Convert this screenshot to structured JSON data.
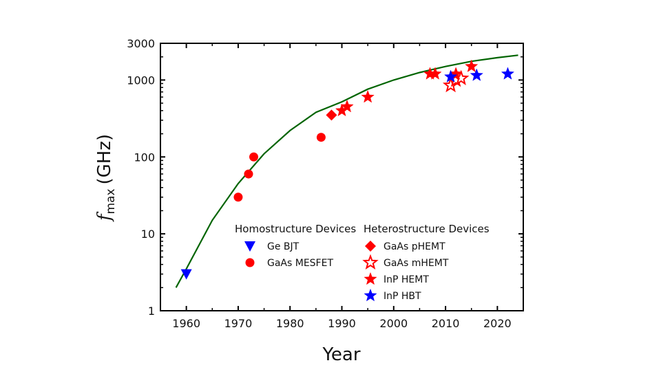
{
  "chart_data": {
    "type": "scatter",
    "xlabel": "Year",
    "ylabel_main": "f",
    "ylabel_sub": "max",
    "ylabel_unit": "(GHz)",
    "xlim": [
      1955,
      2025
    ],
    "ylim": [
      1,
      3000
    ],
    "yscale": "log",
    "grid": false,
    "x_ticks": [
      1960,
      1970,
      1980,
      1990,
      2000,
      2010,
      2020
    ],
    "y_ticks": [
      1,
      10,
      100,
      1000,
      3000
    ],
    "y_tick_labels": [
      "1",
      "10",
      "100",
      "1000",
      "3000"
    ],
    "legend_groups": [
      {
        "title": "Homostructure Devices",
        "entries": [
          "Ge BJT",
          "GaAs MESFET"
        ]
      },
      {
        "title": "Heterostructure Devices",
        "entries": [
          "GaAs pHEMT",
          "GaAs mHEMT",
          "InP HEMT",
          "InP HBT"
        ]
      }
    ],
    "series": [
      {
        "name": "Ge BJT",
        "marker": "triangle-down",
        "color": "#0000ff",
        "filled": true,
        "points": [
          [
            1960,
            3
          ]
        ]
      },
      {
        "name": "GaAs MESFET",
        "marker": "circle",
        "color": "#ff0000",
        "filled": true,
        "points": [
          [
            1970,
            30
          ],
          [
            1972,
            60
          ],
          [
            1973,
            100
          ],
          [
            1986,
            180
          ]
        ]
      },
      {
        "name": "GaAs pHEMT",
        "marker": "diamond",
        "color": "#ff0000",
        "filled": true,
        "points": [
          [
            1988,
            350
          ]
        ]
      },
      {
        "name": "GaAs mHEMT",
        "marker": "star",
        "color": "#ff0000",
        "filled": false,
        "points": [
          [
            2011,
            850
          ],
          [
            2012,
            1000
          ],
          [
            2013,
            1050
          ]
        ]
      },
      {
        "name": "InP HEMT",
        "marker": "star",
        "color": "#ff0000",
        "filled": true,
        "points": [
          [
            1990,
            400
          ],
          [
            1991,
            450
          ],
          [
            1995,
            600
          ],
          [
            2007,
            1200
          ],
          [
            2008,
            1200
          ],
          [
            2012,
            1200
          ],
          [
            2015,
            1500
          ]
        ]
      },
      {
        "name": "InP HBT",
        "marker": "star",
        "color": "#0000ff",
        "filled": true,
        "points": [
          [
            2011,
            1100
          ],
          [
            2016,
            1150
          ],
          [
            2022,
            1200
          ]
        ]
      }
    ],
    "trend_line": {
      "color": "#006400",
      "points": [
        [
          1958,
          2
        ],
        [
          1960,
          3.5
        ],
        [
          1965,
          15
        ],
        [
          1970,
          45
        ],
        [
          1975,
          110
        ],
        [
          1980,
          220
        ],
        [
          1985,
          380
        ],
        [
          1990,
          520
        ],
        [
          1995,
          760
        ],
        [
          2000,
          1000
        ],
        [
          2005,
          1250
        ],
        [
          2010,
          1500
        ],
        [
          2015,
          1750
        ],
        [
          2020,
          1950
        ],
        [
          2024,
          2100
        ]
      ]
    }
  }
}
